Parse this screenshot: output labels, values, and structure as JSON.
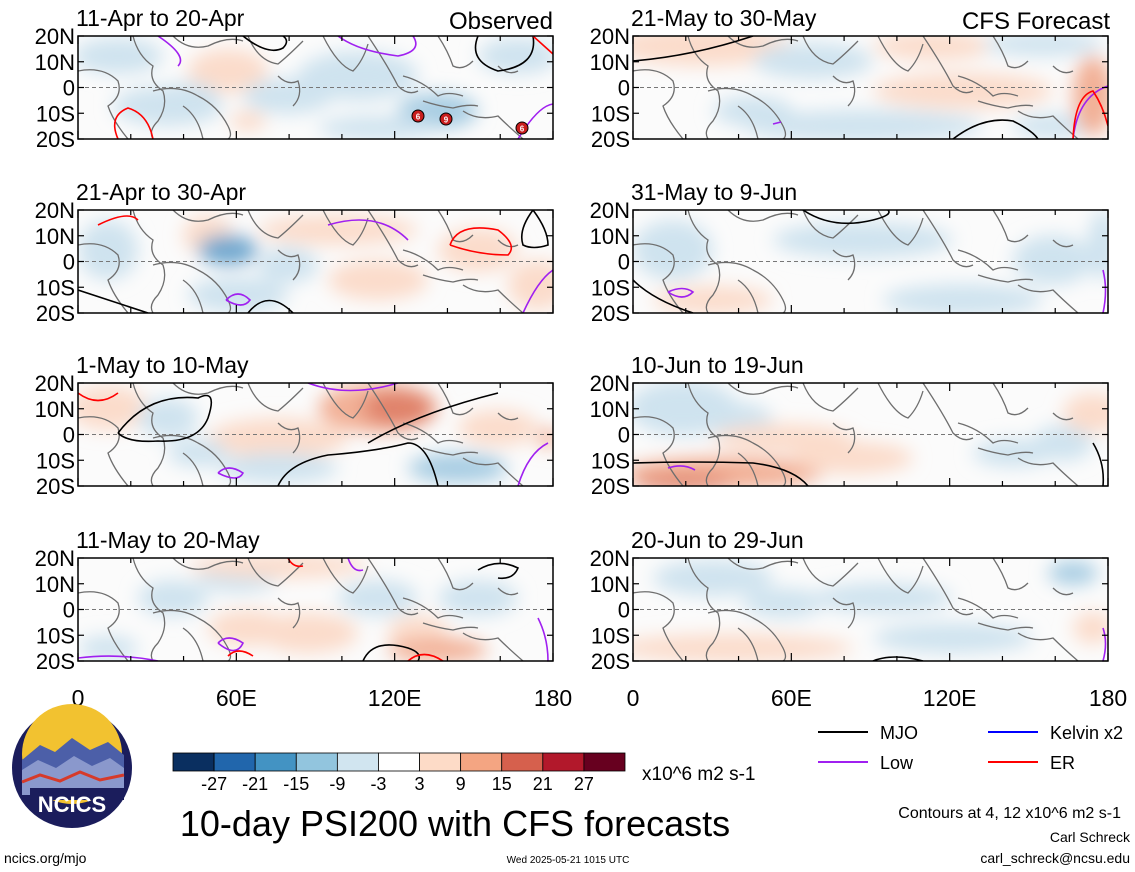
{
  "figure": {
    "title": "10-day PSI200 with CFS forecasts",
    "observed_label": "Observed",
    "forecast_label": "CFS Forecast",
    "contours_note": "Contours at 4, 12 x10^6 m2 s-1",
    "author": "Carl Schreck",
    "email": "carl_schreck@ncsu.edu",
    "site": "ncics.org/mjo",
    "timestamp": "Wed 2025-05-21 1015 UTC",
    "logo_text": "NCICS"
  },
  "map_panels": [
    {
      "label": "11-Apr to 20-Apr",
      "kind": "observed"
    },
    {
      "label": "21-Apr to 30-Apr",
      "kind": "observed"
    },
    {
      "label": "1-May to 10-May",
      "kind": "observed"
    },
    {
      "label": "11-May to 20-May",
      "kind": "observed"
    },
    {
      "label": "21-May to 30-May",
      "kind": "forecast"
    },
    {
      "label": "31-May to 9-Jun",
      "kind": "forecast"
    },
    {
      "label": "10-Jun to 19-Jun",
      "kind": "forecast"
    },
    {
      "label": "20-Jun to 29-Jun",
      "kind": "forecast"
    }
  ],
  "axes": {
    "lat_ticks": [
      "20N",
      "10N",
      "0",
      "10S",
      "20S"
    ],
    "lon_ticks": [
      "0",
      "60E",
      "120E",
      "180"
    ],
    "lat_range": [
      -20,
      20
    ],
    "lon_range": [
      0,
      180
    ]
  },
  "colorbar": {
    "unit": "x10^6 m2 s-1",
    "tick_labels": [
      "-27",
      "-21",
      "-15",
      "-9",
      "-3",
      "3",
      "9",
      "15",
      "21",
      "27"
    ],
    "colors": [
      "#0a2f60",
      "#2166ac",
      "#4393c3",
      "#92c5de",
      "#d1e5f0",
      "#ffffff",
      "#fddbc7",
      "#f4a582",
      "#d6604d",
      "#b2182b",
      "#67001f"
    ]
  },
  "legend": [
    {
      "label": "MJO",
      "color": "#000000"
    },
    {
      "label": "Kelvin x2",
      "color": "#0000ff"
    },
    {
      "label": "Low",
      "color": "#a020f0"
    },
    {
      "label": "ER",
      "color": "#ff0000"
    }
  ],
  "storm_markers": [
    "6",
    "9",
    "6"
  ]
}
